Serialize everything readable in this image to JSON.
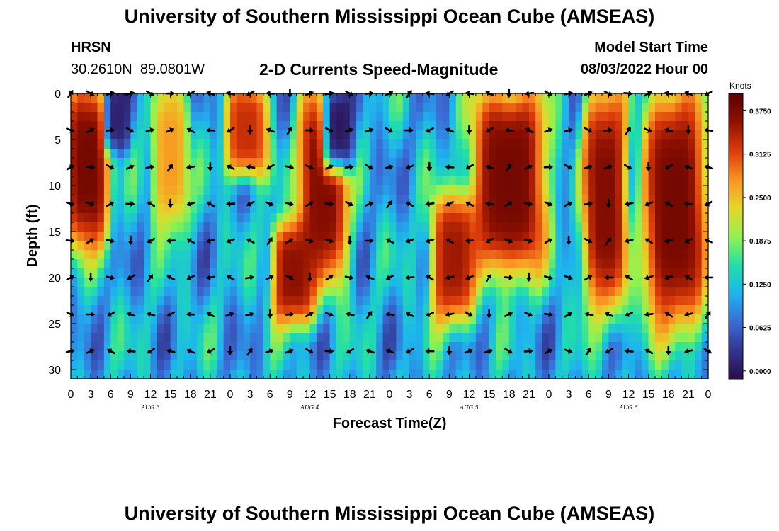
{
  "title_top": "University of Southern Mississippi Ocean Cube (AMSEAS)",
  "title_bottom": "University of Southern Mississippi Ocean Cube (AMSEAS)",
  "station": {
    "name": "HRSN",
    "lat": "30.2610N",
    "lon": "89.0801W"
  },
  "model": {
    "label": "Model Start Time",
    "start": "08/03/2022 Hour 00"
  },
  "chart_data": {
    "type": "heatmap",
    "title": "2-D Currents Speed-Magnitude",
    "xlabel": "Forecast Time(Z)",
    "ylabel": "Depth (ft)",
    "xlim": [
      0,
      96
    ],
    "ylim": [
      31,
      0
    ],
    "x_tick_labels": [
      "0",
      "3",
      "6",
      "9",
      "12",
      "15",
      "18",
      "21",
      "0",
      "3",
      "6",
      "9",
      "12",
      "15",
      "18",
      "21",
      "0",
      "3",
      "6",
      "9",
      "12",
      "15",
      "18",
      "21",
      "0",
      "3",
      "6",
      "9",
      "12",
      "15",
      "18",
      "21",
      "0"
    ],
    "y_ticks": [
      0,
      5,
      10,
      15,
      20,
      25,
      30
    ],
    "day_labels": [
      {
        "label": "AUG 3",
        "hour": 12
      },
      {
        "label": "AUG 4",
        "hour": 36
      },
      {
        "label": "AUG 5",
        "hour": 60
      },
      {
        "label": "AUG 6",
        "hour": 84
      }
    ],
    "colorbar": {
      "units": "Knots",
      "min": -0.0125,
      "max": 0.4,
      "ticks": [
        "0.3750",
        "0.3125",
        "0.2500",
        "0.1875",
        "0.1250",
        "0.0625",
        "0.0000"
      ],
      "colors": [
        "#2b0a4a",
        "#33358e",
        "#3a6bd6",
        "#1eb4ef",
        "#20e0a6",
        "#94f150",
        "#e5d729",
        "#fa9222",
        "#dc3b0a",
        "#8f1100",
        "#5c0000"
      ]
    },
    "arrow_depths_ft": [
      0,
      4,
      8,
      12,
      16,
      20,
      24,
      28
    ],
    "arrow_hours": [
      0,
      3,
      6,
      9,
      12,
      15,
      18,
      21,
      24,
      27,
      30,
      33,
      36,
      39,
      42,
      45,
      48,
      51,
      54,
      57,
      60,
      63,
      66,
      69,
      72,
      75,
      78,
      81,
      84,
      87,
      90,
      93,
      96
    ],
    "high_speed_cores": [
      {
        "hours": [
          0,
          5
        ],
        "depths_ft": [
          0,
          16
        ],
        "speed": 0.38
      },
      {
        "hours": [
          13,
          17
        ],
        "depths_ft": [
          0,
          14
        ],
        "speed": 0.27
      },
      {
        "hours": [
          24,
          29
        ],
        "depths_ft": [
          0,
          8
        ],
        "speed": 0.33
      },
      {
        "hours": [
          35,
          41
        ],
        "depths_ft": [
          0,
          20
        ],
        "speed": 0.37
      },
      {
        "hours": [
          31,
          36
        ],
        "depths_ft": [
          15,
          24
        ],
        "speed": 0.36
      },
      {
        "hours": [
          55,
          60
        ],
        "depths_ft": [
          12,
          24
        ],
        "speed": 0.35
      },
      {
        "hours": [
          61,
          71
        ],
        "depths_ft": [
          0,
          19
        ],
        "speed": 0.38
      },
      {
        "hours": [
          78,
          83
        ],
        "depths_ft": [
          0,
          23
        ],
        "speed": 0.37
      },
      {
        "hours": [
          87,
          95
        ],
        "depths_ft": [
          0,
          25
        ],
        "speed": 0.38
      },
      {
        "hours": [
          6,
          8
        ],
        "depths_ft": [
          0,
          5
        ],
        "speed": 0.01
      },
      {
        "hours": [
          39,
          42
        ],
        "depths_ft": [
          0,
          7
        ],
        "speed": 0.0
      }
    ]
  }
}
